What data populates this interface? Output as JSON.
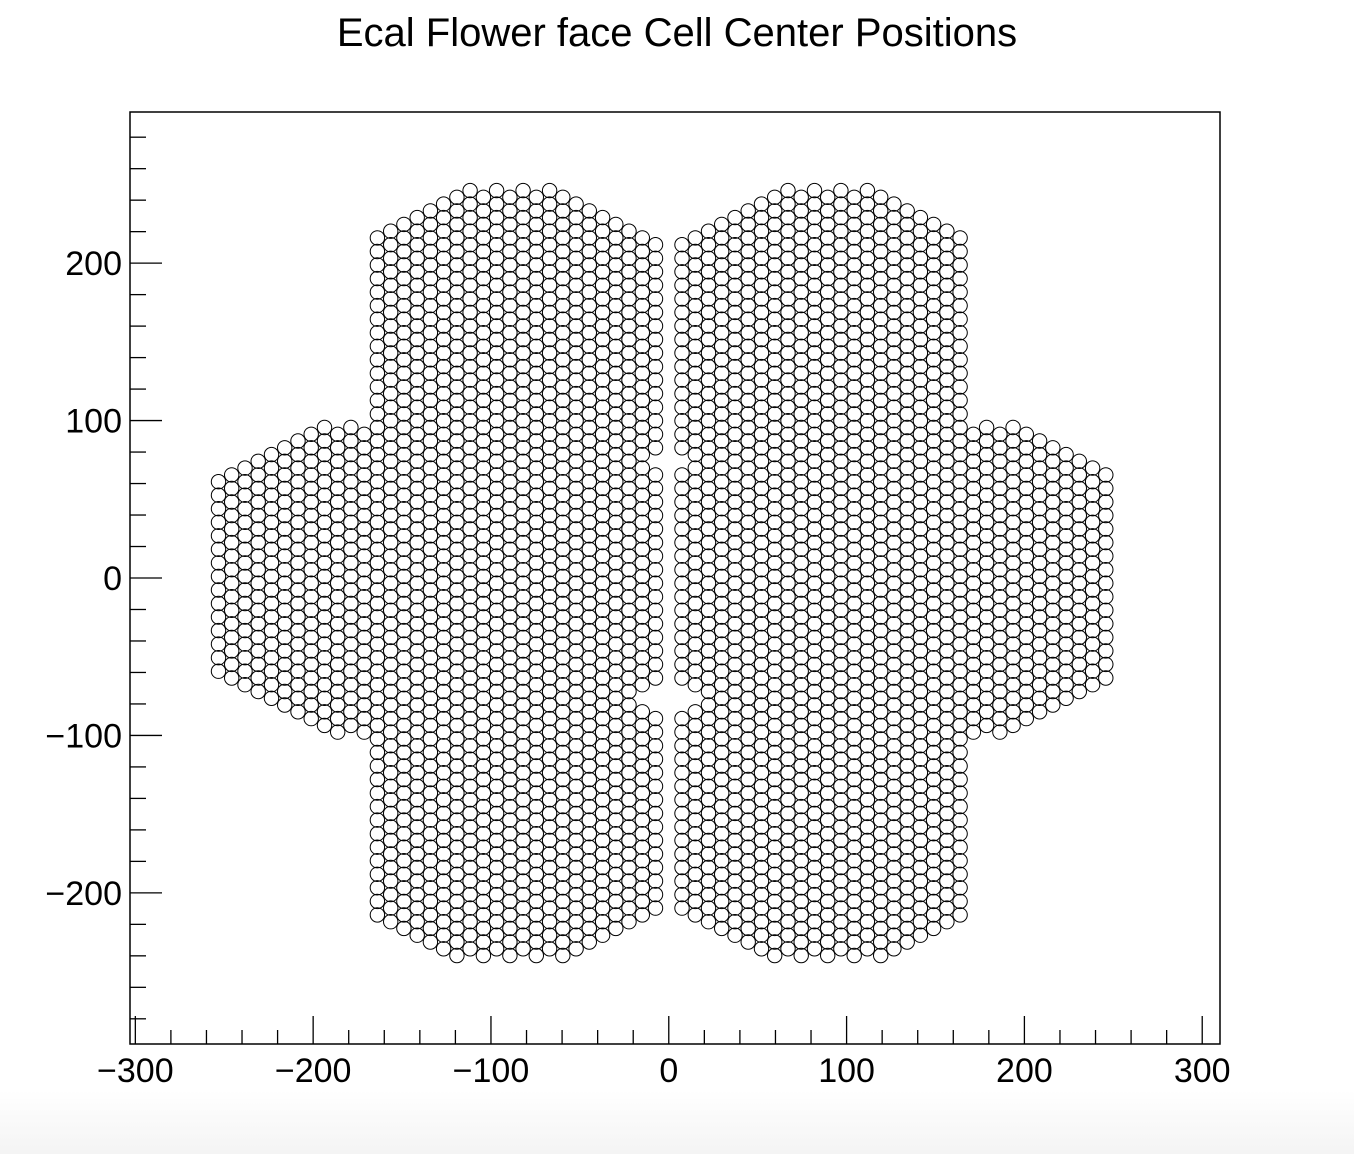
{
  "chart_data": {
    "type": "scatter",
    "title": "Ecal Flower face Cell Center Positions",
    "xlabel": "",
    "ylabel": "",
    "xlim": [
      -303,
      310
    ],
    "ylim": [
      -296,
      296
    ],
    "xticks": [
      -300,
      -200,
      -100,
      0,
      100,
      200,
      300
    ],
    "xtick_labels": [
      "−300",
      "−200",
      "−100",
      "0",
      "100",
      "200",
      "300"
    ],
    "yticks": [
      -200,
      -100,
      0,
      100,
      200
    ],
    "ytick_labels": [
      "−200",
      "−100",
      "0",
      "100",
      "200"
    ],
    "marker": "open-circle",
    "marker_color": "#000000",
    "grid": false,
    "legend": "none",
    "series": [
      {
        "hexagon_modules": [
          {
            "center": [
              -86,
              0
            ],
            "circumradius": 98
          },
          {
            "center": [
              86,
              0
            ],
            "circumradius": 98
          },
          {
            "center": [
              -86,
              -150
            ],
            "circumradius": 98
          },
          {
            "center": [
              86,
              -150
            ],
            "circumradius": 98
          },
          {
            "center": [
              -86,
              150
            ],
            "circumradius": 98
          },
          {
            "center": [
              86,
              150
            ],
            "circumradius": 98
          },
          {
            "center": [
              -172,
              0
            ],
            "circumradius": 98
          },
          {
            "center": [
              172,
              0
            ],
            "circumradius": 98
          }
        ],
        "cell_pitch": 8.6,
        "module_extents": {
          "x": [
            -260,
            253
          ],
          "y": [
            -242,
            251
          ]
        }
      }
    ]
  }
}
